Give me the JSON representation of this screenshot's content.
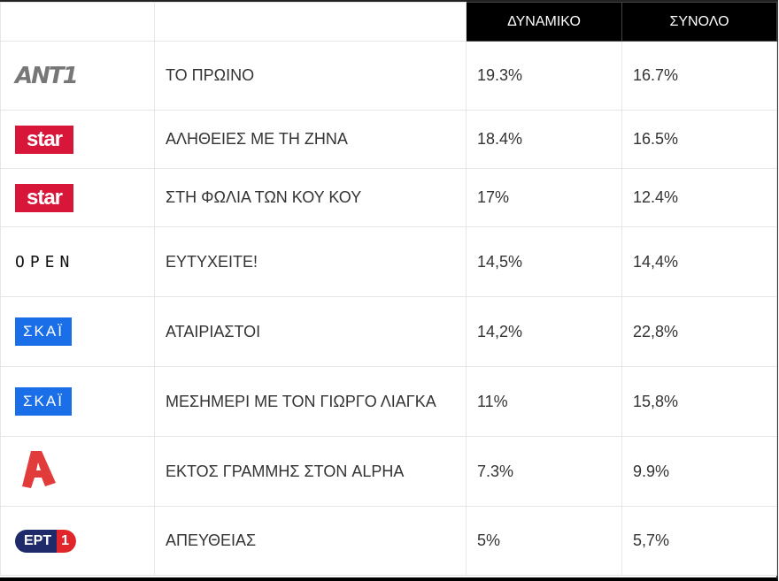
{
  "header": {
    "col_dynamic": "ΔΥΝΑΜΙΚΟ",
    "col_total": "ΣΥΝΟΛΟ"
  },
  "rows": [
    {
      "channel": "ANT1",
      "logo": "ANT1",
      "show": "ΤΟ ΠΡΩΙΝΟ",
      "dynamic": "19.3%",
      "total": "16.7%"
    },
    {
      "channel": "STAR",
      "logo": "star",
      "show": "ΑΛΗΘΕΙΕΣ ΜΕ ΤΗ ΖΗΝΑ",
      "dynamic": "18.4%",
      "total": "16.5%"
    },
    {
      "channel": "STAR",
      "logo": "star",
      "show": "ΣΤΗ ΦΩΛΙΑ ΤΩΝ ΚΟΥ ΚΟΥ",
      "dynamic": "17%",
      "total": "12.4%"
    },
    {
      "channel": "OPEN",
      "logo": "OPEN",
      "show": "ΕΥΤΥΧΕΙΤΕ!",
      "dynamic": "14,5%",
      "total": "14,4%"
    },
    {
      "channel": "SKAI",
      "logo": "ΣΚΑΪ",
      "show": "ΑΤΑΙΡΙΑΣΤΟΙ",
      "dynamic": "14,2%",
      "total": "22,8%"
    },
    {
      "channel": "SKAI",
      "logo": "ΣΚΑΪ",
      "show": "ΜΕΣΗΜΕΡΙ ΜΕ ΤΟΝ ΓΙΩΡΓΟ ΛΙΑΓΚΑ",
      "dynamic": "11%",
      "total": "15,8%"
    },
    {
      "channel": "ALPHA",
      "logo": "A",
      "show": "ΕΚΤΟΣ ΓΡΑΜΜΗΣ ΣΤΟΝ ALPHA",
      "dynamic": "7.3%",
      "total": "9.9%"
    },
    {
      "channel": "ERT1",
      "logo": "ΕΡΤ 1",
      "show": "ΑΠΕΥΘΕΙΑΣ",
      "dynamic": "5%",
      "total": "5,7%"
    }
  ],
  "colors": {
    "star": "#d7163a",
    "skai": "#1a6fe8",
    "alpha": "#e23b3b",
    "ert_blue": "#1e2a6a",
    "ert_red": "#e0262b",
    "header_bg": "#000000"
  }
}
